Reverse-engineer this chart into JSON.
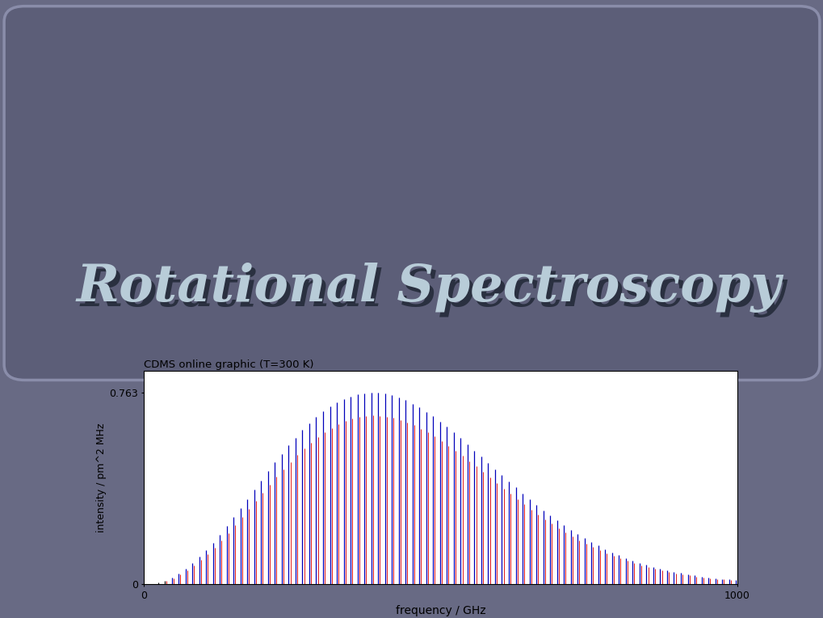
{
  "title": "Rotational Spectroscopy",
  "chart_title": "CDMS online graphic (T=300 K)",
  "xlabel": "frequency / GHz",
  "ylabel": "intensity / pm^2 MHz",
  "xlim": [
    0,
    1000
  ],
  "ylim": [
    0,
    0.85
  ],
  "ytick_max": 0.763,
  "B_GHz": 5.8,
  "T_K": 300,
  "n_lines": 90,
  "bg_color": "#686a84",
  "box_color": "#5c5e78",
  "title_color": "#b8ccd8",
  "title_shadow_color": "#2a3040",
  "line_color_blue": "#0000bb",
  "line_color_red": "#dd0000",
  "line_color_black": "#111111",
  "chart_bg": "#ffffff",
  "box_edge_color": "#8a8daa"
}
